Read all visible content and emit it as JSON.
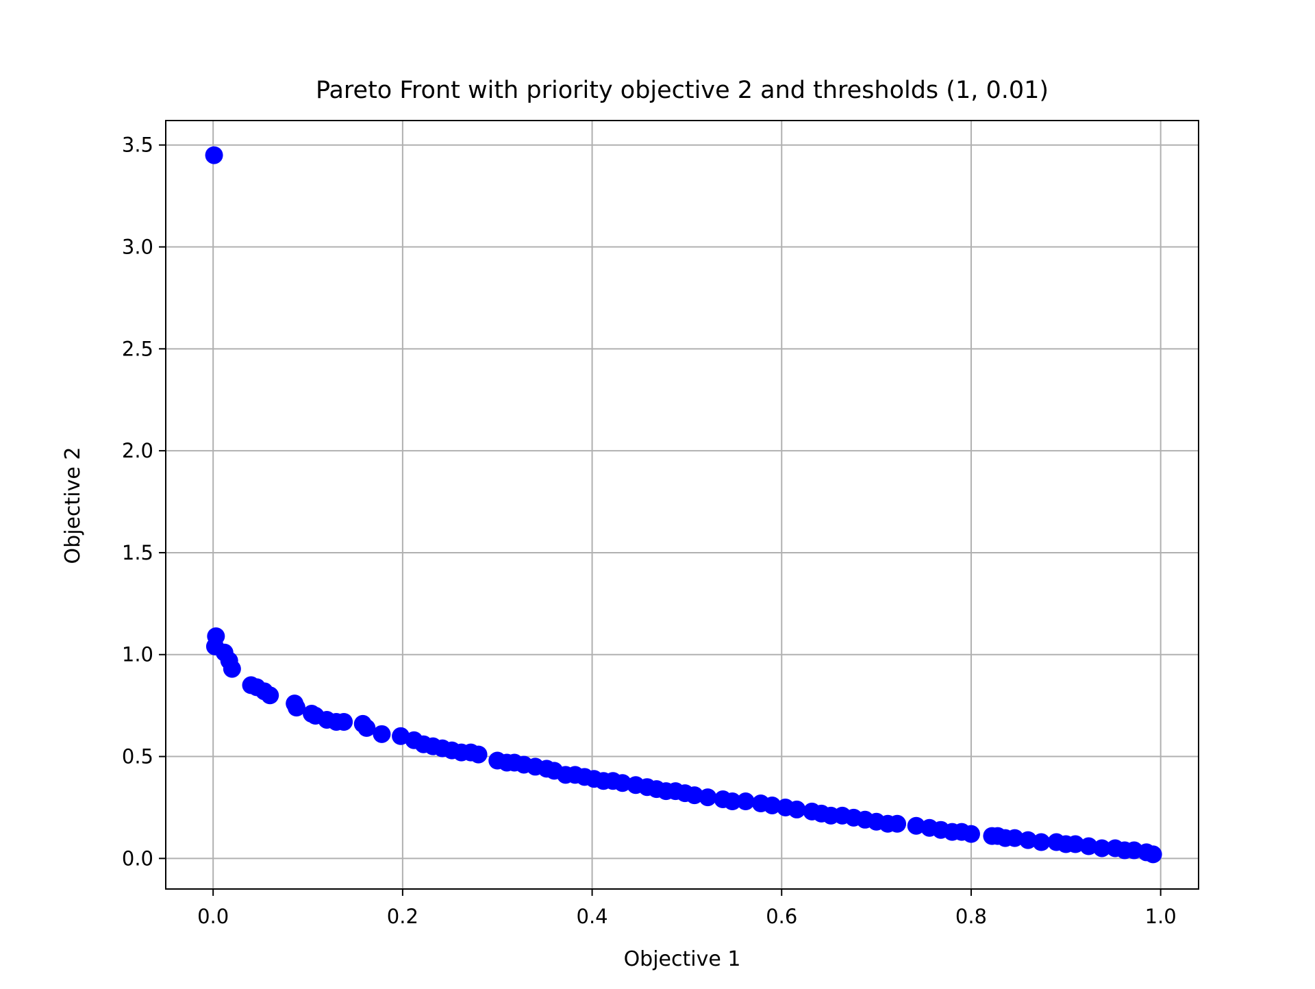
{
  "chart_data": {
    "type": "scatter",
    "title": "Pareto Front with priority objective 2 and thresholds (1, 0.01)",
    "xlabel": "Objective 1",
    "ylabel": "Objective 2",
    "xlim": [
      -0.05,
      1.04
    ],
    "ylim": [
      -0.15,
      3.62
    ],
    "xticks": [
      0.0,
      0.2,
      0.4,
      0.6,
      0.8,
      1.0
    ],
    "xtick_labels": [
      "0.0",
      "0.2",
      "0.4",
      "0.6",
      "0.8",
      "1.0"
    ],
    "yticks": [
      0.0,
      0.5,
      1.0,
      1.5,
      2.0,
      2.5,
      3.0,
      3.5
    ],
    "ytick_labels": [
      "0.0",
      "0.5",
      "1.0",
      "1.5",
      "2.0",
      "2.5",
      "3.0",
      "3.5"
    ],
    "grid": true,
    "marker_color": "#0000ff",
    "series": [
      {
        "x": [
          0.001,
          0.002,
          0.003,
          0.012,
          0.017,
          0.02,
          0.04,
          0.046,
          0.054,
          0.06,
          0.086,
          0.088,
          0.104,
          0.108,
          0.12,
          0.13,
          0.138,
          0.158,
          0.162,
          0.178,
          0.198,
          0.212,
          0.222,
          0.232,
          0.242,
          0.252,
          0.262,
          0.272,
          0.28,
          0.3,
          0.31,
          0.318,
          0.328,
          0.34,
          0.352,
          0.36,
          0.372,
          0.382,
          0.392,
          0.402,
          0.412,
          0.422,
          0.432,
          0.446,
          0.458,
          0.468,
          0.478,
          0.488,
          0.498,
          0.508,
          0.522,
          0.538,
          0.548,
          0.562,
          0.578,
          0.59,
          0.604,
          0.616,
          0.632,
          0.642,
          0.652,
          0.664,
          0.676,
          0.688,
          0.7,
          0.712,
          0.722,
          0.742,
          0.756,
          0.768,
          0.78,
          0.79,
          0.8,
          0.822,
          0.828,
          0.836,
          0.846,
          0.86,
          0.874,
          0.89,
          0.9,
          0.91,
          0.924,
          0.938,
          0.952,
          0.962,
          0.972,
          0.985,
          0.992
        ],
        "y": [
          3.45,
          1.04,
          1.09,
          1.01,
          0.97,
          0.93,
          0.85,
          0.84,
          0.82,
          0.8,
          0.76,
          0.74,
          0.71,
          0.7,
          0.68,
          0.67,
          0.67,
          0.66,
          0.64,
          0.61,
          0.6,
          0.58,
          0.56,
          0.55,
          0.54,
          0.53,
          0.52,
          0.52,
          0.51,
          0.48,
          0.47,
          0.47,
          0.46,
          0.45,
          0.44,
          0.43,
          0.41,
          0.41,
          0.4,
          0.39,
          0.38,
          0.38,
          0.37,
          0.36,
          0.35,
          0.34,
          0.33,
          0.33,
          0.32,
          0.31,
          0.3,
          0.29,
          0.28,
          0.28,
          0.27,
          0.26,
          0.25,
          0.24,
          0.23,
          0.22,
          0.21,
          0.21,
          0.2,
          0.19,
          0.18,
          0.17,
          0.17,
          0.16,
          0.15,
          0.14,
          0.13,
          0.13,
          0.12,
          0.11,
          0.11,
          0.1,
          0.1,
          0.09,
          0.08,
          0.08,
          0.07,
          0.07,
          0.06,
          0.05,
          0.05,
          0.04,
          0.04,
          0.03,
          0.02
        ]
      }
    ]
  }
}
